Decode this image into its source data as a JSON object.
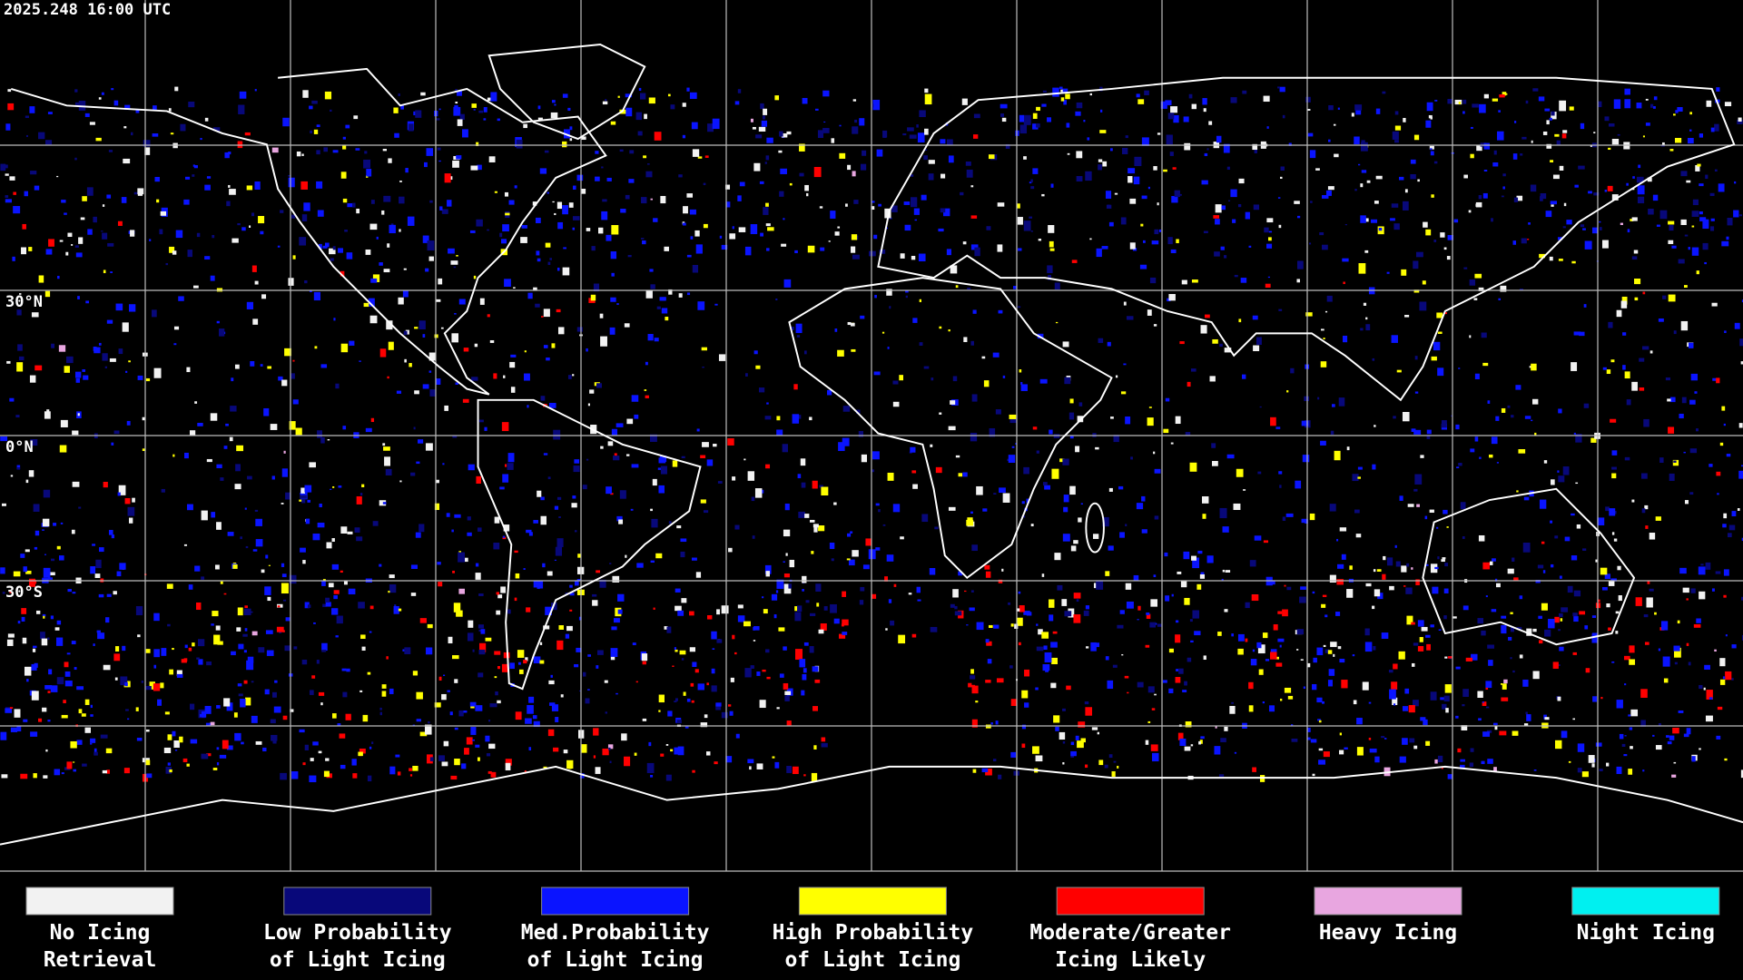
{
  "header": {
    "timestamp": "2025.248 16:00 UTC"
  },
  "map": {
    "lat_labels": [
      "30°N",
      "0°N",
      "30°S"
    ]
  },
  "legend": {
    "items": [
      {
        "label": [
          "No Icing",
          "Retrieval"
        ],
        "color": "#f2f2f2"
      },
      {
        "label": [
          "Low Probability",
          "of Light Icing"
        ],
        "color": "#08087a"
      },
      {
        "label": [
          "Med.Probability",
          "of Light Icing"
        ],
        "color": "#0a14ff"
      },
      {
        "label": [
          "High Probability",
          "of Light Icing"
        ],
        "color": "#ffff00"
      },
      {
        "label": [
          "Moderate/Greater",
          "Icing Likely"
        ],
        "color": "#ff0000"
      },
      {
        "label": [
          "Heavy Icing"
        ],
        "color": "#e8a6e0"
      },
      {
        "label": [
          "Night Icing"
        ],
        "color": "#00f0f0"
      }
    ]
  }
}
